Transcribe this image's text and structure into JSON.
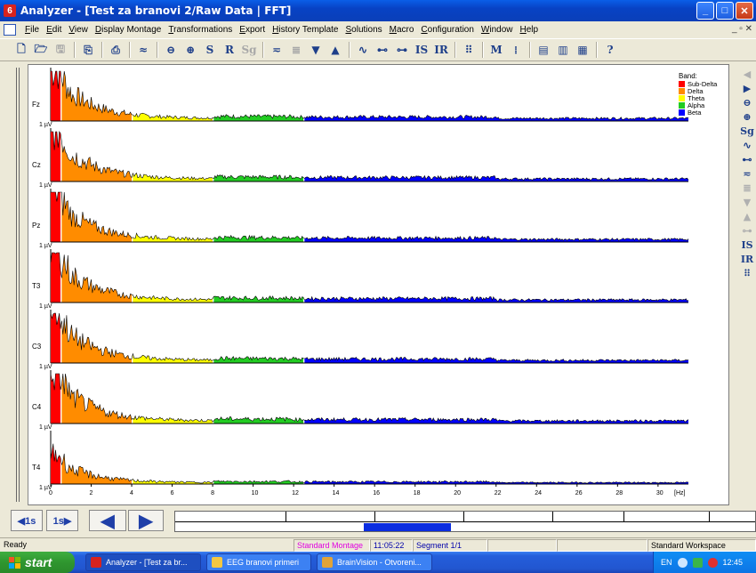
{
  "window": {
    "title": "Analyzer - [Test za branovi 2/Raw Data  |  FFT]",
    "app_icon_glyph": "6",
    "controls": {
      "minimize": "_",
      "maximize": "□",
      "close": "✕"
    }
  },
  "menubar": {
    "items": [
      "File",
      "Edit",
      "View",
      "Display Montage",
      "Transformations",
      "Export",
      "History Template",
      "Solutions",
      "Macro",
      "Configuration",
      "Window",
      "Help"
    ],
    "mdi_controls": "_ ▫ ✕"
  },
  "toolbar": {
    "buttons": [
      {
        "name": "new-icon",
        "glyph": "🗋"
      },
      {
        "name": "open-icon",
        "glyph": "🗁"
      },
      {
        "name": "save-icon",
        "glyph": "🖫",
        "disabled": true
      },
      {
        "sep": true
      },
      {
        "name": "copy-icon",
        "glyph": "⎘"
      },
      {
        "sep": true
      },
      {
        "name": "print-icon",
        "glyph": "⎙"
      },
      {
        "sep": true
      },
      {
        "name": "overlay-icon",
        "glyph": "≈"
      },
      {
        "sep": true
      },
      {
        "name": "zoom-out-icon",
        "glyph": "⊖"
      },
      {
        "name": "zoom-in-icon",
        "glyph": "⊕"
      },
      {
        "name": "scale-s-icon",
        "glyph": "S"
      },
      {
        "name": "scale-r-icon",
        "glyph": "R"
      },
      {
        "name": "sg-icon",
        "glyph": "Sg",
        "disabled": true
      },
      {
        "sep": true
      },
      {
        "name": "channels-icon",
        "glyph": "≂"
      },
      {
        "name": "stack-icon",
        "glyph": "≣",
        "disabled": true
      },
      {
        "name": "down-icon",
        "glyph": "▼"
      },
      {
        "name": "up-icon",
        "glyph": "▲"
      },
      {
        "sep": true
      },
      {
        "name": "wave-icon",
        "glyph": "∿"
      },
      {
        "name": "baseline-icon",
        "glyph": "⊷"
      },
      {
        "name": "marker-icon",
        "glyph": "⊶"
      },
      {
        "name": "is-icon",
        "glyph": "IS"
      },
      {
        "name": "ir-icon",
        "glyph": "IR"
      },
      {
        "sep": true
      },
      {
        "name": "grid-icon",
        "glyph": "⠿"
      },
      {
        "sep": true
      },
      {
        "name": "m-icon",
        "glyph": "M"
      },
      {
        "name": "markers-icon",
        "glyph": "⁞"
      },
      {
        "sep": true
      },
      {
        "name": "layout-a-icon",
        "glyph": "▤"
      },
      {
        "name": "layout-b-icon",
        "glyph": "▥"
      },
      {
        "name": "layout-c-icon",
        "glyph": "▦"
      },
      {
        "sep": true
      },
      {
        "name": "help-icon",
        "glyph": "?"
      }
    ]
  },
  "plot": {
    "channels": [
      "Fz",
      "Cz",
      "Pz",
      "T3",
      "C3",
      "C4",
      "T4"
    ],
    "scale_label": "1 µV",
    "x_ticks": [
      "0",
      "2",
      "4",
      "6",
      "8",
      "10",
      "12",
      "14",
      "16",
      "18",
      "20",
      "22",
      "24",
      "26",
      "28",
      "30"
    ],
    "x_unit": "[Hz]",
    "legend_title": "Band:",
    "bands": [
      {
        "name": "Sub-Delta",
        "color": "#ff0000",
        "from": 0,
        "to": 0.5
      },
      {
        "name": "Delta",
        "color": "#ff8c00",
        "from": 0.5,
        "to": 4
      },
      {
        "name": "Theta",
        "color": "#ffff00",
        "from": 4,
        "to": 8
      },
      {
        "name": "Alpha",
        "color": "#22cc22",
        "from": 8,
        "to": 12.5
      },
      {
        "name": "Beta",
        "color": "#0000ff",
        "from": 12.5,
        "to": 31.5
      }
    ],
    "x_max": 31.5
  },
  "right_toolbar": [
    {
      "name": "scroll-left-icon",
      "glyph": "◀",
      "disabled": true
    },
    {
      "name": "scroll-right-icon",
      "glyph": "▶"
    },
    {
      "name": "zoom-out-icon",
      "glyph": "⊖"
    },
    {
      "name": "zoom-in-icon",
      "glyph": "⊕"
    },
    {
      "name": "sg-icon",
      "glyph": "Sg"
    },
    {
      "name": "wave-icon",
      "glyph": "∿"
    },
    {
      "name": "baseline-icon",
      "glyph": "⊷"
    },
    {
      "name": "channels-icon",
      "glyph": "≂"
    },
    {
      "name": "stack-icon",
      "glyph": "≣",
      "disabled": true
    },
    {
      "name": "down-icon",
      "glyph": "▼",
      "disabled": true
    },
    {
      "name": "up-icon",
      "glyph": "▲",
      "disabled": true
    },
    {
      "name": "marker-icon",
      "glyph": "⊶",
      "disabled": true
    },
    {
      "name": "is-icon",
      "glyph": "IS"
    },
    {
      "name": "ir-icon",
      "glyph": "IR"
    },
    {
      "name": "grid-icon",
      "glyph": "⠿"
    }
  ],
  "navigation": {
    "back_1s": "◀1s",
    "fwd_1s": "1s▶",
    "page_back": "◀",
    "page_fwd": "▶"
  },
  "status": {
    "ready": "Ready",
    "montage": "Standard Montage",
    "time": "11:05:22",
    "segment": "Segment 1/1",
    "workspace": "Standard Workspace",
    "montage_color": "#e000e0"
  },
  "taskbar": {
    "start": "start",
    "tasks": [
      {
        "label": "Analyzer - [Test za br...",
        "active": true
      },
      {
        "label": "EEG branovi primeri",
        "active": false
      },
      {
        "label": "BrainVision - Otvoreni...",
        "active": false
      }
    ],
    "tray_lang": "EN",
    "clock": "12:45"
  }
}
